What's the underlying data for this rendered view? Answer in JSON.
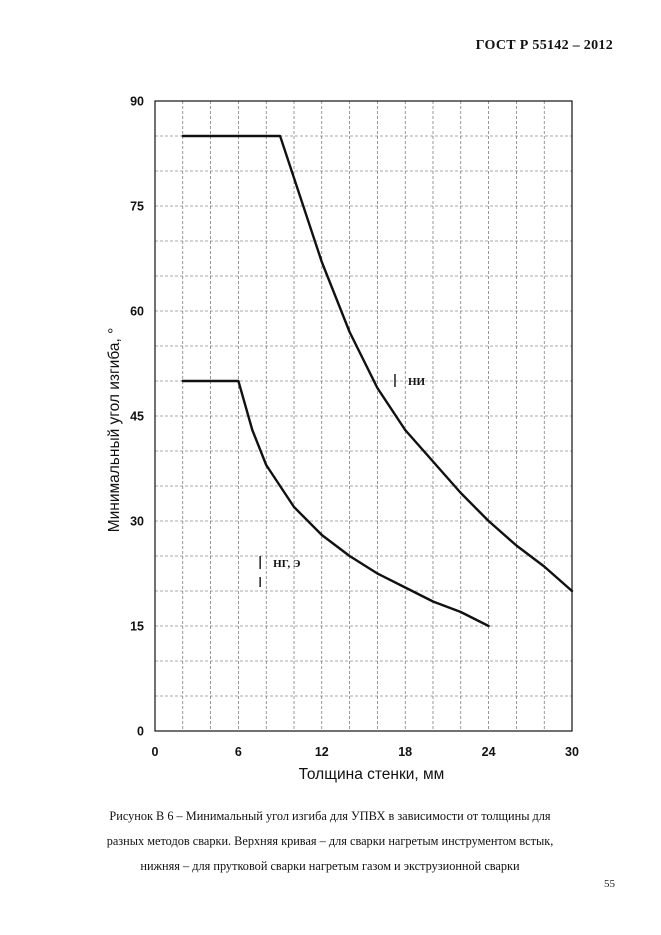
{
  "header": {
    "standard": "ГОСТ Р  55142 – 2012"
  },
  "chart_data": {
    "type": "line",
    "xlabel": "Толщина стенки, мм",
    "ylabel": "Минимальный угол изгиба, °",
    "xlim": [
      0,
      30
    ],
    "ylim": [
      0,
      90
    ],
    "x_ticks": [
      "0",
      "6",
      "12",
      "18",
      "24",
      "30"
    ],
    "y_ticks": [
      "0",
      "15",
      "30",
      "45",
      "60",
      "75",
      "90"
    ],
    "grid": true,
    "series": [
      {
        "x": [
          2,
          9,
          10,
          12,
          14,
          16,
          18,
          20,
          22,
          24,
          26,
          28,
          30
        ],
        "values": [
          85,
          85,
          79,
          67,
          57,
          49,
          43,
          38.5,
          34,
          30,
          26.5,
          23.5,
          20
        ]
      },
      {
        "x": [
          2,
          6,
          7,
          8,
          10,
          12,
          14,
          16,
          18,
          20,
          22,
          24
        ],
        "values": [
          50,
          50,
          43,
          38,
          32,
          28,
          25,
          22.5,
          20.5,
          18.5,
          17,
          15
        ]
      }
    ],
    "annotations": [
      {
        "text": "НИ",
        "x": 18.2,
        "y": 50
      },
      {
        "text": "НГ, Э",
        "x": 8.5,
        "y": 24
      }
    ]
  },
  "caption": {
    "line1": "Рисунок В 6 – Минимальный угол изгиба для УПВХ в зависимости от толщины для",
    "line2": "разных методов сварки. Верхняя кривая – для сварки нагретым инструментом встык,",
    "line3": "нижняя – для прутковой сварки нагретым газом и экструзионной сварки"
  },
  "page": {
    "number": "55"
  }
}
